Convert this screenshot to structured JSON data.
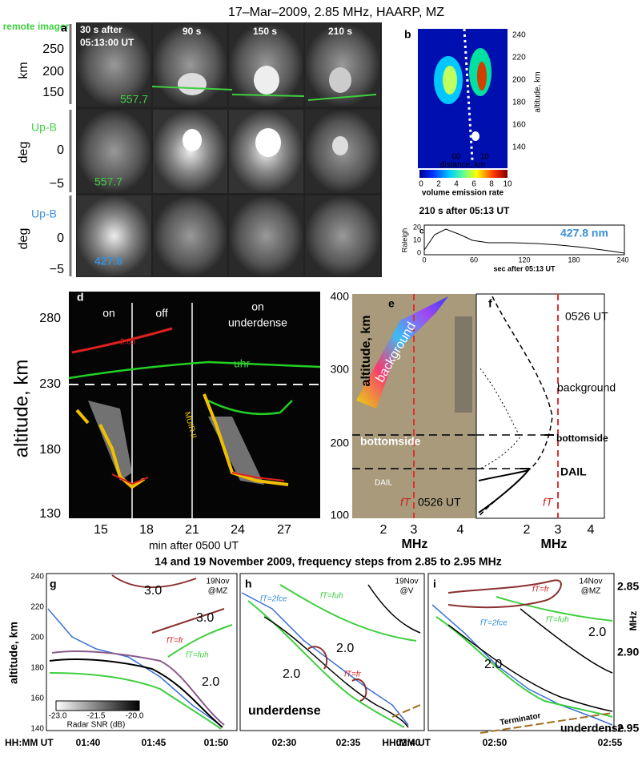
{
  "title": "17–Mar–2009, 2.85 MHz, HAARP, MZ",
  "panel_a": {
    "letter": "a",
    "remote_imager": "remote imager",
    "row_labels": [
      "Up-B",
      "Up-B"
    ],
    "y_units": [
      "km",
      "deg",
      "deg"
    ],
    "yticks_row1": [
      "250",
      "200",
      "150"
    ],
    "yticks_row2": [
      "0",
      "−5"
    ],
    "yticks_row3": [
      "0",
      "−5"
    ],
    "columns": [
      "30 s after",
      "05:13:00 UT",
      "90 s",
      "150 s",
      "210 s"
    ],
    "wavelengths": [
      "557.7",
      "557.7",
      "427.8"
    ]
  },
  "panel_b": {
    "letter": "b",
    "yticks": [
      "240",
      "220",
      "200",
      "180",
      "160",
      "140"
    ],
    "y_label": "altitude, km",
    "xticks": [
      "60",
      "10"
    ],
    "x_label": "distance, km",
    "cbar_ticks": [
      "0",
      "2",
      "4",
      "6",
      "8",
      "10"
    ],
    "cbar_label": "volume emission rate",
    "caption": "210 s after 05:13 UT"
  },
  "panel_c": {
    "letter": "c",
    "y_label": "Raleigh",
    "yticks": [
      "20",
      "10",
      "0"
    ],
    "xticks": [
      "0",
      "60",
      "120",
      "180",
      "240"
    ],
    "x_label": "sec after 05:13 UT",
    "legend": "427.8 nm"
  },
  "panel_d": {
    "letter": "d",
    "yticks": [
      "280",
      "230",
      "180",
      "130"
    ],
    "y_label": "altitude, km",
    "xticks": [
      "15",
      "18",
      "21",
      "24",
      "27"
    ],
    "x_label": "min after 0500 UT",
    "labels": [
      "on",
      "off",
      "on",
      "underdense",
      "2.85",
      "uhr",
      "MUIR IL"
    ]
  },
  "panel_e": {
    "letter": "e",
    "yticks": [
      "400",
      "300",
      "200",
      "100"
    ],
    "y_label": "altitude, km",
    "labels": [
      "background",
      "bottomside",
      "DAIL",
      "0526 UT",
      "fT"
    ],
    "xticks": [
      "2",
      "3",
      "4"
    ],
    "x_label": "MHz"
  },
  "panel_f": {
    "letter": "f",
    "labels": [
      "0526 UT",
      "background",
      "bottomside",
      "DAIL",
      "fT"
    ],
    "xticks": [
      "2",
      "3",
      "4"
    ],
    "x_label": "MHz"
  },
  "subtitle": "14 and 19 November 2009, frequency steps from 2.85 to 2.95 MHz",
  "panel_g": {
    "letter": "g",
    "tag": [
      "19Nov",
      "@MZ"
    ],
    "yticks": [
      "240",
      "220",
      "200",
      "180",
      "160",
      "140"
    ],
    "y_label": "altitude, km",
    "labels": [
      "3.0",
      "3.0",
      "2.0",
      "fT=fr",
      "fT=fuh"
    ],
    "cbar_ticks": [
      "-23.0",
      "-21.5",
      "-20.0"
    ],
    "cbar_label": "Radar SNR (dB)",
    "x_label": "HH:MM UT",
    "xticks": [
      "01:40",
      "01:45",
      "01:50"
    ]
  },
  "panel_h": {
    "letter": "h",
    "tag": [
      "19Nov",
      "@V"
    ],
    "labels": [
      "fT=2fce",
      "fT=fuh",
      "2.0",
      "2.0",
      "fT=fr",
      "underdense"
    ],
    "xticks": [
      "02:30",
      "02:35",
      "02:40"
    ]
  },
  "panel_i": {
    "letter": "i",
    "tag": [
      "14Nov",
      "@MZ"
    ],
    "labels": [
      "fT=fr",
      "fT=2fce",
      "fT=fuh",
      "2.0",
      "2.0",
      "Terminator",
      "underdense"
    ],
    "x_label": "HH:MM UT",
    "xticks": [
      "02:50",
      "02:55"
    ],
    "yticks_right": [
      "2.85",
      "2.90",
      "2.95"
    ],
    "y_label_right": "MHz"
  }
}
